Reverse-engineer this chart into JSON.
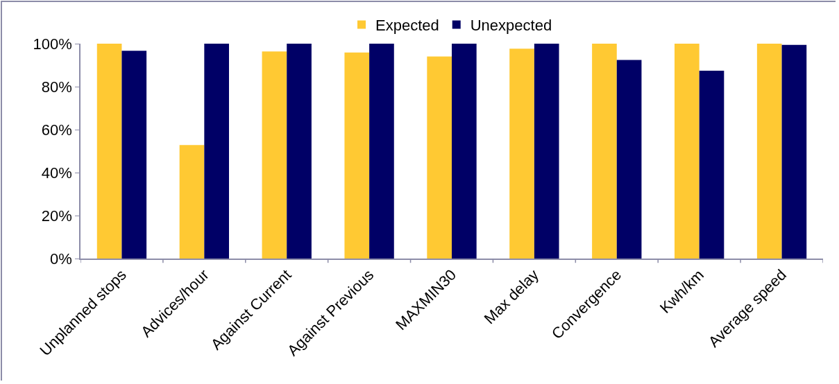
{
  "chart_data": {
    "type": "bar",
    "categories": [
      "Unplanned stops",
      "Advices/hour",
      "Against Current",
      "Against Previous",
      "MAXMIN30",
      "Max delay",
      "Convergence",
      "Kwh/km",
      "Average speed"
    ],
    "series": [
      {
        "name": "Expected",
        "color": "#ffc933",
        "values": [
          100,
          52.8,
          96.4,
          95.9,
          94,
          97.7,
          100,
          100,
          100
        ]
      },
      {
        "name": "Unexpected",
        "color": "#000066",
        "values": [
          96.7,
          100,
          100,
          100,
          100,
          100,
          92.4,
          87.4,
          99.4
        ]
      }
    ],
    "ylim": [
      0,
      100
    ],
    "yticks": [
      {
        "value": 0,
        "label": "0%"
      },
      {
        "value": 20,
        "label": "20%"
      },
      {
        "value": 40,
        "label": "40%"
      },
      {
        "value": 60,
        "label": "60%"
      },
      {
        "value": 80,
        "label": "80%"
      },
      {
        "value": 100,
        "label": "100%"
      }
    ],
    "grid": false,
    "legend": "top"
  }
}
